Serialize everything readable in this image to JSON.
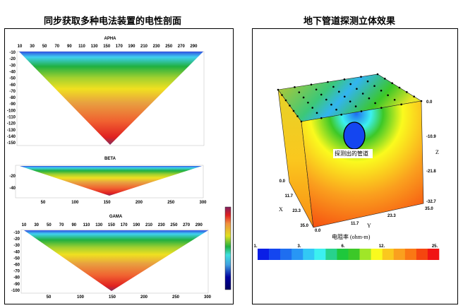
{
  "left_title": "同步获取多种电法装置的电性剖面",
  "right_title": "地下管道探测立体效果",
  "sections": [
    {
      "name": "APHA",
      "top_ticks": [
        "10",
        "30",
        "50",
        "70",
        "90",
        "110",
        "130",
        "150",
        "170",
        "190",
        "210",
        "230",
        "250",
        "270",
        "290"
      ],
      "depth_ticks": [
        "-10",
        "-20",
        "-30",
        "-40",
        "-50",
        "-60",
        "-70",
        "-80",
        "-90",
        "-100",
        "-110",
        "-120",
        "-130",
        "-140",
        "-150"
      ]
    },
    {
      "name": "BETA",
      "depth_ticks": [
        "-20",
        "-40"
      ],
      "bottom_ticks": [
        "50",
        "100",
        "150",
        "200",
        "250",
        "300"
      ]
    },
    {
      "name": "GAMA",
      "top_ticks": [
        "10",
        "30",
        "50",
        "70",
        "90",
        "110",
        "130",
        "150",
        "170",
        "190",
        "210",
        "230",
        "250",
        "270",
        "290"
      ],
      "depth_ticks": [
        "-10",
        "-20",
        "-30",
        "-40",
        "-50",
        "-60",
        "-70",
        "-80",
        "-90",
        "-100"
      ],
      "bottom_ticks": [
        "50",
        "100",
        "150",
        "200",
        "250",
        "300"
      ]
    }
  ],
  "cube": {
    "annotation": "探测出的管道",
    "z_label": "Z",
    "z_ticks": [
      "0.0",
      "-10.9",
      "-21.8",
      "-32.7"
    ],
    "x_label": "X",
    "x_ticks": [
      "0.0",
      "11.7",
      "23.3",
      "35.0"
    ],
    "y_label": "Y",
    "y_ticks": [
      "0.0",
      "11.7",
      "23.3",
      "35.0"
    ],
    "colorbar_title": "电阻率 (ohm-m)",
    "colorbar_ticks": [
      "1.",
      "3.",
      "6.",
      "12.",
      "25."
    ],
    "colorbar_colors": [
      "#0a1ee6",
      "#1446f0",
      "#1e6ef0",
      "#2896f5",
      "#32c8f5",
      "#3cf0f0",
      "#28d28c",
      "#1ec83c",
      "#3cc828",
      "#a0e628",
      "#fafa1e",
      "#fac81e",
      "#faa01e",
      "#fa7814",
      "#f5460f",
      "#f01414"
    ]
  },
  "colors": {
    "legend_bar": [
      "#000060",
      "#0000a0",
      "#2040d0",
      "#40a0e0",
      "#40e0e0",
      "#20b040",
      "#60c030",
      "#e0e020",
      "#f0c030",
      "#f09040",
      "#f06030",
      "#e02020",
      "#802060"
    ]
  }
}
